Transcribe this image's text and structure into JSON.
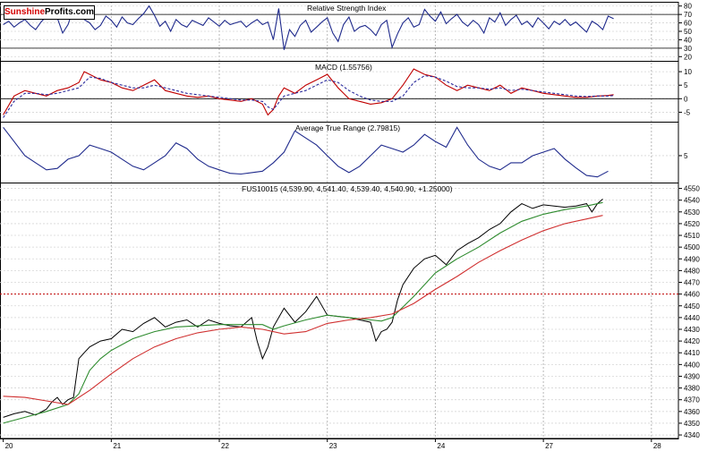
{
  "logo": {
    "part1": "Sunshine",
    "part2": "Profits",
    "part3": ".com"
  },
  "chart_data": [
    {
      "type": "line",
      "title": "Relative Strength Index",
      "ylim": [
        15,
        85
      ],
      "yticks": [
        80,
        70,
        60,
        50,
        40,
        30,
        20
      ],
      "hlines": [
        70,
        30
      ],
      "series": [
        {
          "color": "#1f2a8c",
          "x": [
            0,
            0.05,
            0.1,
            0.15,
            0.2,
            0.25,
            0.3,
            0.35,
            0.4,
            0.45,
            0.5,
            0.55,
            0.6,
            0.65,
            0.7,
            0.75,
            0.8,
            0.85,
            0.9,
            0.95,
            1.0,
            1.05,
            1.1,
            1.15,
            1.2,
            1.25,
            1.3,
            1.35,
            1.4,
            1.45,
            1.5,
            1.55,
            1.6,
            1.65,
            1.7,
            1.75,
            1.8,
            1.85,
            1.9,
            1.95,
            2.0,
            2.05,
            2.1,
            2.15,
            2.2,
            2.25,
            2.3,
            2.35,
            2.4,
            2.45,
            2.5,
            2.55,
            2.6,
            2.65,
            2.7,
            2.75,
            2.8,
            2.85,
            2.9,
            2.95,
            3.0,
            3.05,
            3.1,
            3.15,
            3.2,
            3.25,
            3.3,
            3.35,
            3.4,
            3.45,
            3.5,
            3.55,
            3.6,
            3.65,
            3.7,
            3.75,
            3.8,
            3.85,
            3.9,
            3.95,
            4.0,
            4.05,
            4.1,
            4.15,
            4.2,
            4.25,
            4.3,
            4.35,
            4.4,
            4.45,
            4.5,
            4.55,
            4.6,
            4.65,
            4.7,
            4.75,
            4.8,
            4.85,
            4.9,
            4.95,
            5.0,
            5.05,
            5.1,
            5.15,
            5.2,
            5.25,
            5.3,
            5.35,
            5.4,
            5.45,
            5.5,
            5.55,
            5.6,
            5.65
          ],
          "y": [
            58,
            62,
            55,
            60,
            64,
            57,
            52,
            61,
            68,
            73,
            66,
            48,
            58,
            77,
            72,
            64,
            60,
            52,
            57,
            68,
            63,
            55,
            67,
            60,
            58,
            65,
            71,
            80,
            69,
            56,
            62,
            50,
            64,
            58,
            55,
            63,
            60,
            57,
            66,
            61,
            56,
            63,
            58,
            60,
            62,
            55,
            60,
            64,
            58,
            61,
            40,
            77,
            28,
            52,
            44,
            57,
            63,
            49,
            55,
            61,
            66,
            48,
            38,
            58,
            67,
            50,
            55,
            57,
            52,
            45,
            58,
            63,
            31,
            47,
            60,
            66,
            55,
            58,
            76,
            68,
            62,
            73,
            59,
            65,
            70,
            61,
            56,
            63,
            58,
            48,
            66,
            61,
            72,
            57,
            64,
            69,
            58,
            62,
            55,
            66,
            60,
            53,
            62,
            58,
            64,
            57,
            61,
            55,
            49,
            62,
            58,
            52,
            68,
            65
          ]
        }
      ]
    },
    {
      "type": "line",
      "title": "MACD (1.55756)",
      "ylim": [
        -8.5,
        14
      ],
      "yticks": [
        10,
        5,
        0,
        -5
      ],
      "hlines": [
        0
      ],
      "series": [
        {
          "color": "#c00000",
          "x": [
            0,
            0.1,
            0.2,
            0.3,
            0.4,
            0.5,
            0.6,
            0.7,
            0.75,
            0.8,
            0.9,
            1.0,
            1.1,
            1.2,
            1.3,
            1.4,
            1.5,
            1.6,
            1.7,
            1.8,
            1.9,
            2.0,
            2.1,
            2.2,
            2.3,
            2.4,
            2.45,
            2.5,
            2.55,
            2.6,
            2.7,
            2.8,
            2.9,
            3.0,
            3.1,
            3.2,
            3.3,
            3.4,
            3.5,
            3.6,
            3.7,
            3.8,
            3.9,
            4.0,
            4.1,
            4.2,
            4.3,
            4.4,
            4.5,
            4.6,
            4.7,
            4.8,
            4.9,
            5.0,
            5.1,
            5.2,
            5.3,
            5.4,
            5.5,
            5.6,
            5.65
          ],
          "y": [
            -6,
            1,
            3,
            2,
            1,
            3,
            4,
            6,
            10,
            9,
            7,
            6,
            4,
            3,
            5,
            7,
            3,
            2,
            1,
            0.5,
            1,
            0,
            -0.5,
            -1,
            0,
            -2,
            -6,
            -4,
            1,
            4,
            2,
            5,
            7,
            9,
            4,
            0,
            -1,
            -2,
            -1.5,
            0,
            5,
            11,
            9,
            8,
            5,
            3,
            5,
            4,
            3,
            5,
            2,
            4,
            3,
            2,
            1.5,
            1,
            0.5,
            0.5,
            1,
            1.2,
            1.5
          ]
        },
        {
          "color": "#2a2a9c",
          "x": [
            0,
            0.1,
            0.2,
            0.3,
            0.4,
            0.5,
            0.6,
            0.7,
            0.75,
            0.8,
            0.9,
            1.0,
            1.1,
            1.2,
            1.3,
            1.4,
            1.5,
            1.6,
            1.7,
            1.8,
            1.9,
            2.0,
            2.1,
            2.2,
            2.3,
            2.4,
            2.45,
            2.5,
            2.55,
            2.6,
            2.7,
            2.8,
            2.9,
            3.0,
            3.1,
            3.2,
            3.3,
            3.4,
            3.5,
            3.6,
            3.7,
            3.8,
            3.9,
            4.0,
            4.1,
            4.2,
            4.3,
            4.4,
            4.5,
            4.6,
            4.7,
            4.8,
            4.9,
            5.0,
            5.1,
            5.2,
            5.3,
            5.4,
            5.5,
            5.6,
            5.65
          ],
          "y": [
            -7,
            -1,
            2,
            2,
            1.5,
            2,
            3,
            4,
            6,
            8,
            7.5,
            6,
            5,
            4,
            4,
            5,
            4,
            3,
            2,
            1.5,
            1,
            0.5,
            0,
            -0.5,
            -0.5,
            -1,
            -3,
            -4,
            -1.5,
            1,
            2,
            3,
            5,
            7,
            6,
            3,
            1,
            -0.5,
            -1,
            -1,
            1,
            6,
            8.5,
            8,
            6.5,
            4.5,
            4,
            4,
            3.5,
            4,
            3,
            3.5,
            3,
            2.5,
            2,
            1.5,
            1,
            0.8,
            1,
            1,
            1.2
          ]
        }
      ]
    },
    {
      "type": "line",
      "title": "Average True Range (2.79815)",
      "ylim": [
        1.2,
        9.8
      ],
      "yticks": [
        5
      ],
      "hlines": [],
      "series": [
        {
          "color": "#1f2a8c",
          "x": [
            0,
            0.1,
            0.2,
            0.3,
            0.4,
            0.5,
            0.6,
            0.7,
            0.8,
            0.9,
            1.0,
            1.1,
            1.2,
            1.3,
            1.4,
            1.5,
            1.6,
            1.7,
            1.8,
            1.9,
            2.0,
            2.1,
            2.2,
            2.3,
            2.4,
            2.5,
            2.6,
            2.7,
            2.8,
            2.9,
            3.0,
            3.1,
            3.2,
            3.3,
            3.4,
            3.5,
            3.6,
            3.7,
            3.8,
            3.9,
            4.0,
            4.1,
            4.2,
            4.3,
            4.4,
            4.5,
            4.6,
            4.7,
            4.8,
            4.9,
            5.0,
            5.1,
            5.2,
            5.3,
            5.4,
            5.5,
            5.6
          ],
          "y": [
            9,
            7,
            5,
            4,
            3,
            3.2,
            4.5,
            5,
            6.5,
            6,
            5.5,
            4.5,
            3.5,
            3,
            4,
            5,
            6.8,
            6,
            4.5,
            3.5,
            3,
            2.5,
            2.4,
            2.6,
            2.8,
            4,
            5.5,
            8.5,
            7.5,
            6.5,
            5,
            3.5,
            2.6,
            3.5,
            5,
            6.5,
            6,
            5.5,
            6.5,
            8,
            7,
            6.2,
            9,
            6.5,
            4.5,
            3.5,
            3,
            4,
            4,
            5,
            5.5,
            6,
            4.5,
            3.3,
            2.2,
            2,
            2.8
          ]
        }
      ]
    },
    {
      "type": "line",
      "title": "FUS10015 (4,539.90, 4,541.40, 4,539.40, 4,540.90, +1.25000)",
      "ylim": [
        4337,
        4555
      ],
      "yticks": [
        4550,
        4540,
        4530,
        4520,
        4510,
        4500,
        4490,
        4480,
        4470,
        4460,
        4450,
        4440,
        4430,
        4420,
        4410,
        4400,
        4390,
        4380,
        4370,
        4360,
        4350,
        4340
      ],
      "hlines": [
        4460
      ],
      "x_ticklabels": [
        "20",
        "21",
        "22",
        "23",
        "24",
        "27",
        "28"
      ],
      "x_tick_values": [
        0,
        1,
        2,
        3,
        4,
        5,
        6
      ],
      "series": [
        {
          "name": "price",
          "color": "#000000",
          "x": [
            0,
            0.1,
            0.2,
            0.3,
            0.4,
            0.45,
            0.5,
            0.55,
            0.6,
            0.65,
            0.7,
            0.75,
            0.8,
            0.9,
            1.0,
            1.1,
            1.2,
            1.3,
            1.4,
            1.5,
            1.6,
            1.7,
            1.8,
            1.9,
            2.0,
            2.1,
            2.2,
            2.3,
            2.35,
            2.4,
            2.45,
            2.5,
            2.55,
            2.6,
            2.7,
            2.8,
            2.9,
            3.0,
            3.1,
            3.2,
            3.3,
            3.4,
            3.45,
            3.5,
            3.55,
            3.6,
            3.65,
            3.7,
            3.8,
            3.9,
            4.0,
            4.1,
            4.2,
            4.3,
            4.4,
            4.5,
            4.6,
            4.7,
            4.8,
            4.9,
            5.0,
            5.1,
            5.2,
            5.3,
            5.4,
            5.45,
            5.5,
            5.55
          ],
          "y": [
            4355,
            4358,
            4360,
            4357,
            4362,
            4368,
            4372,
            4366,
            4370,
            4372,
            4405,
            4410,
            4415,
            4420,
            4422,
            4430,
            4428,
            4435,
            4440,
            4432,
            4436,
            4438,
            4432,
            4438,
            4435,
            4433,
            4432,
            4440,
            4420,
            4405,
            4415,
            4432,
            4440,
            4448,
            4436,
            4445,
            4458,
            4442,
            4441,
            4440,
            4438,
            4436,
            4420,
            4428,
            4430,
            4436,
            4455,
            4468,
            4482,
            4490,
            4493,
            4485,
            4497,
            4503,
            4508,
            4515,
            4520,
            4530,
            4537,
            4533,
            4536,
            4535,
            4534,
            4535,
            4537,
            4530,
            4537,
            4541
          ]
        },
        {
          "name": "ma-short",
          "color": "#2e8b2e",
          "x": [
            0,
            0.2,
            0.4,
            0.6,
            0.7,
            0.8,
            0.9,
            1.0,
            1.2,
            1.4,
            1.6,
            1.8,
            2.0,
            2.2,
            2.4,
            2.5,
            2.6,
            2.8,
            3.0,
            3.2,
            3.4,
            3.5,
            3.6,
            3.8,
            4.0,
            4.2,
            4.4,
            4.6,
            4.8,
            5.0,
            5.2,
            5.4,
            5.55
          ],
          "y": [
            4350,
            4355,
            4360,
            4366,
            4375,
            4395,
            4405,
            4412,
            4422,
            4428,
            4432,
            4433,
            4434,
            4434,
            4434,
            4430,
            4433,
            4438,
            4442,
            4440,
            4438,
            4437,
            4440,
            4458,
            4478,
            4490,
            4500,
            4512,
            4522,
            4528,
            4532,
            4535,
            4538
          ]
        },
        {
          "name": "ma-long",
          "color": "#d03030",
          "x": [
            0,
            0.2,
            0.4,
            0.6,
            0.8,
            1.0,
            1.2,
            1.4,
            1.6,
            1.8,
            2.0,
            2.2,
            2.4,
            2.6,
            2.8,
            3.0,
            3.2,
            3.4,
            3.6,
            3.8,
            4.0,
            4.2,
            4.4,
            4.6,
            4.8,
            5.0,
            5.2,
            5.4,
            5.55
          ],
          "y": [
            4373,
            4372,
            4369,
            4366,
            4378,
            4392,
            4405,
            4415,
            4422,
            4427,
            4430,
            4432,
            4430,
            4426,
            4428,
            4435,
            4438,
            4440,
            4443,
            4452,
            4464,
            4475,
            4487,
            4497,
            4506,
            4514,
            4520,
            4524,
            4527
          ]
        }
      ]
    }
  ]
}
